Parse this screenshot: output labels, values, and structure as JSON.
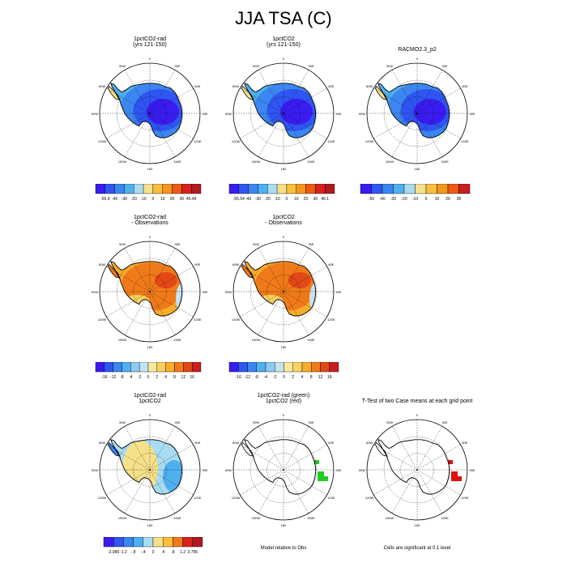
{
  "figure": {
    "title": "JJA TSA (C)"
  },
  "panels": [
    {
      "id": "p1",
      "title_lines": [
        "1pctCO2-rad",
        "(yrs 121-150)"
      ],
      "field": "abs",
      "colorbar": {
        "labels": [
          "-55.9",
          "-40",
          "-30",
          "-20",
          "-10",
          "0",
          "10",
          "20",
          "30",
          "45.49"
        ],
        "colors": [
          "#3a1cf0",
          "#2f55f2",
          "#3b86f0",
          "#4fb0f0",
          "#a8dcf2",
          "#f6e089",
          "#f9bf3d",
          "#f5961d",
          "#ec5a14",
          "#d9201c",
          "#b01a20"
        ]
      }
    },
    {
      "id": "p2",
      "title_lines": [
        "1pctCO2",
        "(yrs 121-150)"
      ],
      "field": "abs",
      "colorbar": {
        "labels": [
          "-55.54",
          "-40",
          "-30",
          "-20",
          "-10",
          "0",
          "10",
          "20",
          "30",
          "46.1"
        ],
        "colors": [
          "#3a1cf0",
          "#2f55f2",
          "#3b86f0",
          "#4fb0f0",
          "#a8dcf2",
          "#f6e089",
          "#f9bf3d",
          "#f5961d",
          "#ec5a14",
          "#d9201c",
          "#b01a20"
        ]
      }
    },
    {
      "id": "p3",
      "title_lines": [
        "RACMO2.3_p2"
      ],
      "field": "abs",
      "colorbar": {
        "labels": [
          "-50",
          "-40",
          "-30",
          "-20",
          "-10",
          "0",
          "10",
          "20",
          "30"
        ],
        "colors": [
          "#3a1cf0",
          "#2f55f2",
          "#3b86f0",
          "#4fb0f0",
          "#a8dcf2",
          "#f6e089",
          "#f9bf3d",
          "#f5961d",
          "#ec5a14",
          "#c81e20"
        ]
      }
    },
    {
      "id": "p4",
      "title_lines": [
        "1pctCO2-rad",
        "- Observations"
      ],
      "field": "bias",
      "colorbar": {
        "labels": [
          "-16",
          "-12",
          "-8",
          "-4",
          "-2",
          "0",
          "2",
          "4",
          "8",
          "12",
          "16"
        ],
        "colors": [
          "#3a1cf0",
          "#2f55f2",
          "#3b86f0",
          "#4fb0f0",
          "#8ec9f0",
          "#c5e4f2",
          "#f8ea9c",
          "#f9d160",
          "#f7ac2c",
          "#f07a1a",
          "#e24818",
          "#c81e20"
        ]
      }
    },
    {
      "id": "p5",
      "title_lines": [
        "1pctCO2",
        "- Observations"
      ],
      "field": "bias",
      "colorbar": {
        "labels": [
          "-16",
          "-12",
          "-8",
          "-4",
          "-2",
          "0",
          "2",
          "4",
          "8",
          "12",
          "16"
        ],
        "colors": [
          "#3a1cf0",
          "#2f55f2",
          "#3b86f0",
          "#4fb0f0",
          "#8ec9f0",
          "#c5e4f2",
          "#f8ea9c",
          "#f9d160",
          "#f7ac2c",
          "#f07a1a",
          "#e24818",
          "#c81e20"
        ]
      }
    },
    {
      "id": "p6",
      "title_lines": [
        "1pctCO2-rad",
        "1pctCO2"
      ],
      "field": "diff",
      "colorbar": {
        "labels": [
          "-2.985",
          "-1.2",
          "-.8",
          "-.4",
          "0",
          ".4",
          ".8",
          "1.2",
          "3.796"
        ],
        "colors": [
          "#3a1cf0",
          "#2f55f2",
          "#3b86f0",
          "#4fb0f0",
          "#a8dcf2",
          "#f6e089",
          "#f9bf3d",
          "#f07a1a",
          "#d9201c",
          "#b01a20"
        ]
      }
    },
    {
      "id": "p7",
      "title_lines": [
        "1pctCO2-rad (green)",
        "1pctCO2 (red)"
      ],
      "field": "sig_green",
      "note": "Model relative to Obs"
    },
    {
      "id": "p8",
      "title_lines": [
        "T-Test of two Case means at each grid point"
      ],
      "field": "sig_red",
      "note": "Cells are significant at 0.1 level"
    }
  ],
  "map": {
    "lon_labels": [
      "0",
      "30E",
      "60E",
      "90E",
      "120E",
      "150E",
      "180",
      "150W",
      "120W",
      "90W",
      "60W",
      "30W"
    ],
    "colors": {
      "land_outline": "#000000",
      "grid": "#000000",
      "sig_green": "#22cc22",
      "sig_red": "#dd1111"
    }
  },
  "chart_data": [
    {
      "type": "heatmap",
      "title": "1pctCO2-rad (yrs 121-150)",
      "projection": "south polar stereographic",
      "levels": [
        -55.9,
        -40,
        -30,
        -20,
        -10,
        0,
        10,
        20,
        30,
        45.49
      ],
      "description_values": {
        "interior": -55,
        "coast": -20,
        "peninsula": 0
      }
    },
    {
      "type": "heatmap",
      "title": "1pctCO2 (yrs 121-150)",
      "projection": "south polar stereographic",
      "levels": [
        -55.54,
        -40,
        -30,
        -20,
        -10,
        0,
        10,
        20,
        30,
        46.1
      ],
      "description_values": {
        "interior": -55,
        "coast": -20,
        "peninsula": 0
      }
    },
    {
      "type": "heatmap",
      "title": "RACMO2.3_p2",
      "projection": "south polar stereographic",
      "levels": [
        -50,
        -40,
        -30,
        -20,
        -10,
        0,
        10,
        20,
        30
      ],
      "description_values": {
        "interior": -55,
        "coast": -25,
        "peninsula": 0
      }
    },
    {
      "type": "heatmap",
      "title": "1pctCO2-rad - Observations",
      "projection": "south polar stereographic",
      "levels": [
        -16,
        -12,
        -8,
        -4,
        -2,
        0,
        2,
        4,
        8,
        12,
        16
      ],
      "description_values": {
        "interior": 8,
        "coast": 4,
        "ross_shelf": -2
      }
    },
    {
      "type": "heatmap",
      "title": "1pctCO2 - Observations",
      "projection": "south polar stereographic",
      "levels": [
        -16,
        -12,
        -8,
        -4,
        -2,
        0,
        2,
        4,
        8,
        12,
        16
      ],
      "description_values": {
        "interior": 8,
        "coast": 4,
        "ross_shelf": -2
      }
    },
    {
      "type": "heatmap",
      "title": "1pctCO2-rad 1pctCO2",
      "projection": "south polar stereographic",
      "levels": [
        -2.985,
        -1.2,
        -0.8,
        -0.4,
        0,
        0.4,
        0.8,
        1.2,
        3.796
      ],
      "description_values": {
        "east": -0.4,
        "west": 0.2
      }
    },
    {
      "type": "heatmap",
      "title": "1pctCO2-rad (green) 1pctCO2 (red)",
      "projection": "south polar stereographic",
      "description_values": {
        "significant_cells": "few near 90E"
      }
    },
    {
      "type": "heatmap",
      "title": "T-Test of two Case means at each grid point",
      "projection": "south polar stereographic",
      "description_values": {
        "significant_cells": "few near 90E-120E"
      }
    }
  ]
}
